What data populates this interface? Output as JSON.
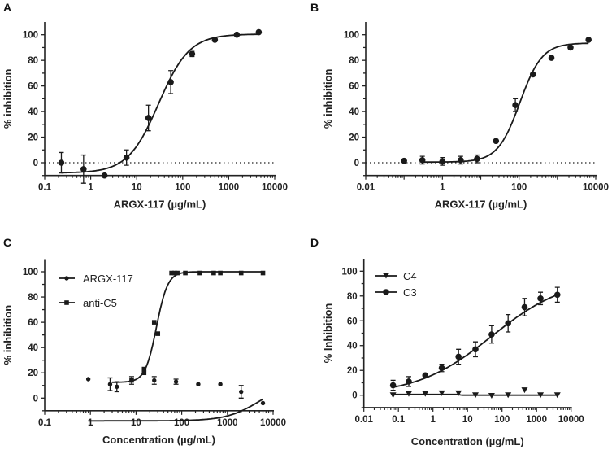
{
  "chart_data": [
    {
      "panel": "A",
      "type": "scatter",
      "xlabel": "ARGX-117 (µg/mL)",
      "ylabel": "% inhibition",
      "xscale": "log",
      "xlim": [
        0.1,
        10000
      ],
      "ylim": [
        -10,
        110
      ],
      "xticks": [
        "0.1",
        "1",
        "10",
        "100",
        "1000",
        "10000"
      ],
      "yticks": [
        "0",
        "20",
        "40",
        "60",
        "80",
        "100"
      ],
      "reference_line": {
        "y": 0,
        "style": "dotted"
      },
      "series": [
        {
          "marker": "circle",
          "x": [
            0.23,
            0.7,
            2.0,
            6.0,
            18,
            55,
            160,
            500,
            1500,
            4500
          ],
          "y": [
            0,
            -5,
            -10,
            4,
            35,
            63,
            85,
            96,
            100,
            102
          ],
          "err": [
            8,
            11,
            0,
            6,
            10,
            9,
            2,
            0,
            0,
            0
          ],
          "fit": {
            "model": "4PL",
            "bottom": -8,
            "top": 100.5,
            "ec50": 30,
            "hill": 1.3,
            "xrange": [
              0.23,
              4500
            ]
          }
        }
      ]
    },
    {
      "panel": "B",
      "type": "scatter",
      "xlabel": "ARGX-117 (µg/mL)",
      "ylabel": "% inhibition",
      "xscale": "log",
      "xlim": [
        0.01,
        10000
      ],
      "ylim": [
        -10,
        110
      ],
      "xticks": [
        "0.01",
        "1",
        "100",
        "10000"
      ],
      "yticks": [
        "0",
        "20",
        "40",
        "60",
        "80",
        "100"
      ],
      "reference_line": {
        "y": 0,
        "style": "dotted"
      },
      "series": [
        {
          "marker": "circle",
          "x": [
            0.1,
            0.3,
            1,
            3,
            8,
            25,
            80,
            230,
            700,
            2200,
            6500
          ],
          "y": [
            1.5,
            2,
            1,
            2,
            3,
            17,
            45,
            69,
            82,
            90,
            96
          ],
          "err": [
            0,
            3,
            3,
            3,
            3,
            0,
            5,
            0,
            0,
            0,
            0
          ],
          "fit": {
            "model": "4PL",
            "bottom": 0.5,
            "top": 93.5,
            "ec50": 105,
            "hill": 1.5,
            "xrange": [
              0.3,
              6500
            ]
          }
        }
      ]
    },
    {
      "panel": "C",
      "type": "scatter",
      "xlabel": "Concentration (µg/mL)",
      "ylabel": "% inhibition",
      "xscale": "log",
      "xlim": [
        0.1,
        10000
      ],
      "ylim": [
        -10,
        110
      ],
      "xticks": [
        "0.1",
        "1",
        "10",
        "100",
        "1000",
        "10000"
      ],
      "yticks": [
        "0",
        "20",
        "40",
        "60",
        "80",
        "100"
      ],
      "legend": "top-left",
      "series": [
        {
          "name": "ARGX-117",
          "marker": "circle-small",
          "x": [
            0.9,
            2.7,
            3.8,
            8,
            25,
            75,
            230,
            700,
            2000,
            6000
          ],
          "y": [
            15,
            11,
            9,
            14,
            14,
            13,
            11,
            11,
            5,
            -4
          ],
          "err": [
            0,
            5,
            4,
            3,
            3,
            2,
            0,
            0,
            5,
            0
          ],
          "fit": {
            "model": "4PL",
            "bottom": -18,
            "top": 13,
            "ec50": 5000,
            "hill": 1.2,
            "xrange": [
              0.9,
              6000
            ]
          }
        },
        {
          "name": "anti-C5",
          "marker": "square",
          "x": [
            8,
            15,
            15,
            25,
            30,
            60,
            70,
            80,
            120,
            250,
            500,
            700,
            2000,
            6000
          ],
          "y": [
            14,
            20,
            23,
            60,
            51,
            99,
            99,
            99,
            99,
            99,
            99,
            99,
            99,
            99
          ],
          "err": [
            0,
            0,
            0,
            0,
            0,
            0,
            0,
            0,
            0,
            0,
            0,
            0,
            0,
            0
          ],
          "fit": {
            "model": "4PL",
            "bottom": 12.5,
            "top": 100,
            "ec50": 28,
            "hill": 3.5,
            "xrange": [
              3,
              6000
            ]
          }
        }
      ]
    },
    {
      "panel": "D",
      "type": "scatter",
      "xlabel": "Concentration (µg/mL)",
      "ylabel": "% Inhibition",
      "xscale": "log",
      "xlim": [
        0.01,
        10000
      ],
      "ylim": [
        -10,
        110
      ],
      "xticks": [
        "0.01",
        "0.1",
        "1",
        "10",
        "100",
        "1000",
        "10000"
      ],
      "yticks": [
        "0",
        "20",
        "40",
        "60",
        "80",
        "100"
      ],
      "legend": "top-left",
      "series": [
        {
          "name": "C4",
          "marker": "triangle-down",
          "x": [
            0.07,
            0.2,
            0.6,
            1.8,
            5.5,
            17,
            50,
            150,
            450,
            1300,
            4000
          ],
          "y": [
            0,
            1,
            1,
            1.5,
            1.5,
            0,
            -0.5,
            0,
            4,
            0,
            0
          ],
          "err": [
            0,
            0,
            0,
            0,
            0,
            0,
            0,
            0,
            0,
            0,
            0
          ],
          "fit": {
            "model": "4PL",
            "bottom": 0,
            "top": 0.6,
            "ec50": 6,
            "hill": -20,
            "xrange": [
              0.07,
              4000
            ]
          }
        },
        {
          "name": "C3",
          "marker": "circle",
          "x": [
            0.07,
            0.2,
            0.6,
            1.8,
            5.5,
            17,
            50,
            150,
            450,
            1300,
            4000
          ],
          "y": [
            8,
            11,
            16,
            22,
            31,
            37,
            49,
            58,
            71,
            78,
            81
          ],
          "err": [
            4,
            4,
            0,
            3,
            6,
            6,
            7,
            7,
            7,
            5,
            6
          ],
          "fit": {
            "model": "4PL",
            "bottom": 0,
            "top": 95,
            "ec50": 50,
            "hill": 0.4,
            "xrange": [
              0.07,
              4000
            ]
          }
        }
      ]
    }
  ]
}
